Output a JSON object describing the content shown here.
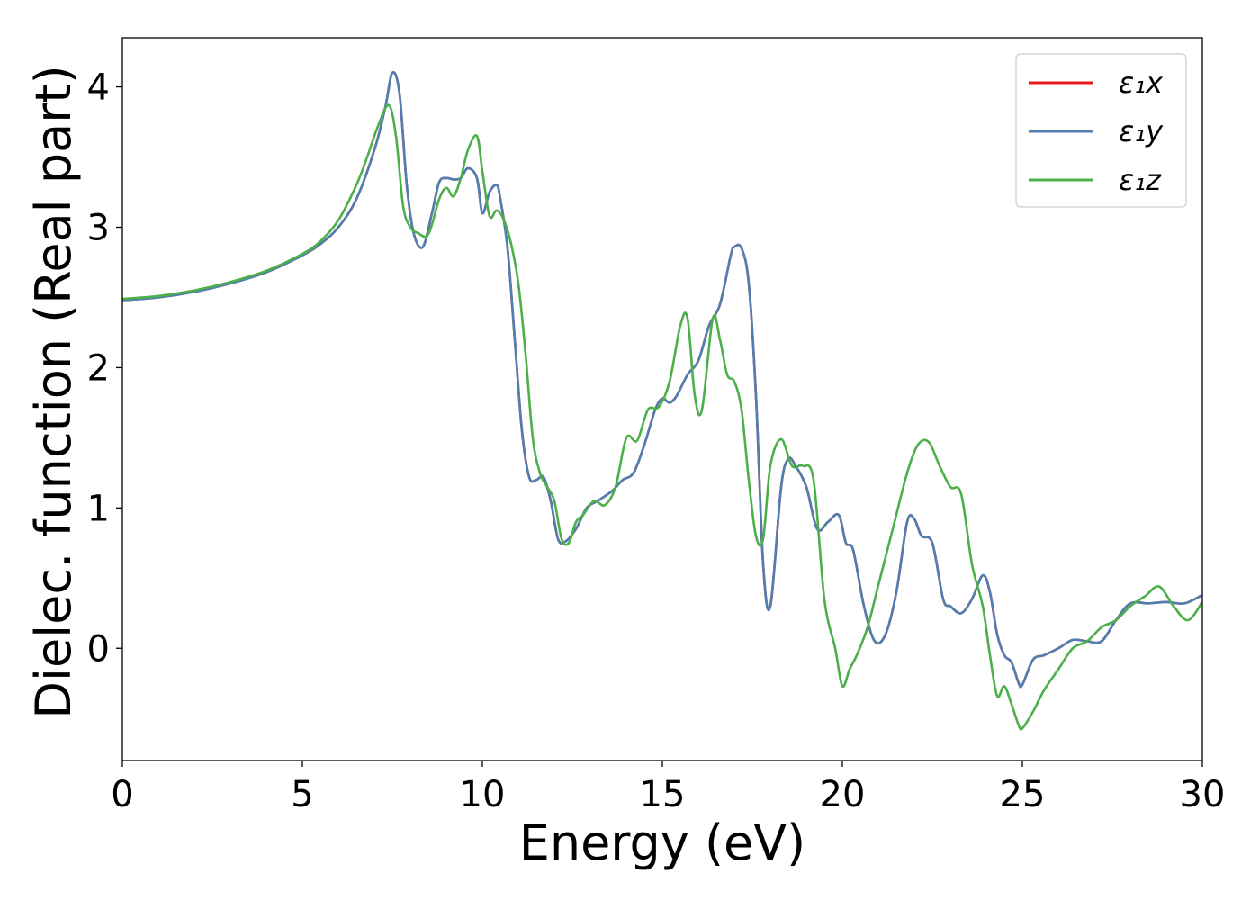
{
  "chart_data": {
    "type": "line",
    "title": "",
    "xlabel": "Energy (eV)",
    "ylabel": "Dielec. function (Real part)",
    "xlim": [
      0,
      30
    ],
    "ylim": [
      -0.8,
      4.35
    ],
    "xticks": [
      0,
      5,
      10,
      15,
      20,
      25,
      30
    ],
    "yticks": [
      0,
      1,
      2,
      3,
      4
    ],
    "grid": false,
    "legend_position": "top-right",
    "series": [
      {
        "name": "ε₁x",
        "color": "#e41a1c",
        "x": [
          0,
          1,
          2,
          3,
          4,
          5,
          5.5,
          6,
          6.5,
          7,
          7.3,
          7.5,
          7.7,
          7.9,
          8.1,
          8.35,
          8.6,
          8.8,
          9.0,
          9.2,
          9.4,
          9.6,
          9.85,
          10.0,
          10.2,
          10.4,
          10.5,
          10.7,
          10.9,
          11.1,
          11.3,
          11.5,
          11.7,
          11.9,
          12.1,
          12.3,
          12.6,
          12.9,
          13.2,
          13.6,
          13.9,
          14.2,
          14.5,
          14.8,
          15.0,
          15.2,
          15.4,
          15.7,
          16.0,
          16.3,
          16.6,
          16.9,
          17.0,
          17.2,
          17.4,
          17.6,
          17.8,
          18.0,
          18.3,
          18.5,
          18.7,
          19.0,
          19.3,
          19.6,
          19.9,
          20.1,
          20.3,
          20.6,
          20.9,
          21.2,
          21.5,
          21.8,
          22.0,
          22.2,
          22.5,
          22.8,
          23.0,
          23.3,
          23.6,
          23.9,
          24.1,
          24.3,
          24.5,
          24.7,
          24.9,
          25.0,
          25.3,
          25.6,
          26.0,
          26.4,
          26.8,
          27.2,
          27.6,
          28.0,
          28.5,
          29.0,
          29.5,
          30.0
        ],
        "y": [
          2.48,
          2.5,
          2.54,
          2.6,
          2.68,
          2.8,
          2.88,
          3.0,
          3.2,
          3.55,
          3.85,
          4.1,
          3.95,
          3.3,
          2.95,
          2.86,
          3.1,
          3.32,
          3.35,
          3.34,
          3.35,
          3.42,
          3.35,
          3.1,
          3.25,
          3.3,
          3.2,
          2.85,
          2.2,
          1.55,
          1.22,
          1.2,
          1.22,
          1.05,
          0.78,
          0.76,
          0.85,
          1.0,
          1.05,
          1.12,
          1.2,
          1.25,
          1.45,
          1.7,
          1.78,
          1.75,
          1.8,
          1.95,
          2.05,
          2.3,
          2.45,
          2.8,
          2.86,
          2.85,
          2.6,
          1.8,
          0.6,
          0.3,
          1.15,
          1.35,
          1.3,
          1.15,
          0.85,
          0.9,
          0.95,
          0.75,
          0.7,
          0.3,
          0.05,
          0.1,
          0.4,
          0.9,
          0.92,
          0.8,
          0.75,
          0.35,
          0.3,
          0.25,
          0.35,
          0.52,
          0.4,
          0.1,
          -0.05,
          -0.1,
          -0.25,
          -0.26,
          -0.08,
          -0.05,
          0.0,
          0.06,
          0.05,
          0.05,
          0.2,
          0.32,
          0.32,
          0.33,
          0.32,
          0.38
        ]
      },
      {
        "name": "ε₁y",
        "color": "#4e7fb0",
        "x": [
          0,
          1,
          2,
          3,
          4,
          5,
          5.5,
          6,
          6.5,
          7,
          7.3,
          7.5,
          7.7,
          7.9,
          8.1,
          8.35,
          8.6,
          8.8,
          9.0,
          9.2,
          9.4,
          9.6,
          9.85,
          10.0,
          10.2,
          10.4,
          10.5,
          10.7,
          10.9,
          11.1,
          11.3,
          11.5,
          11.7,
          11.9,
          12.1,
          12.3,
          12.6,
          12.9,
          13.2,
          13.6,
          13.9,
          14.2,
          14.5,
          14.8,
          15.0,
          15.2,
          15.4,
          15.7,
          16.0,
          16.3,
          16.6,
          16.9,
          17.0,
          17.2,
          17.4,
          17.6,
          17.8,
          18.0,
          18.3,
          18.5,
          18.7,
          19.0,
          19.3,
          19.6,
          19.9,
          20.1,
          20.3,
          20.6,
          20.9,
          21.2,
          21.5,
          21.8,
          22.0,
          22.2,
          22.5,
          22.8,
          23.0,
          23.3,
          23.6,
          23.9,
          24.1,
          24.3,
          24.5,
          24.7,
          24.9,
          25.0,
          25.3,
          25.6,
          26.0,
          26.4,
          26.8,
          27.2,
          27.6,
          28.0,
          28.5,
          29.0,
          29.5,
          30.0
        ],
        "y": [
          2.48,
          2.5,
          2.54,
          2.6,
          2.68,
          2.8,
          2.88,
          3.0,
          3.2,
          3.55,
          3.85,
          4.1,
          3.95,
          3.3,
          2.95,
          2.86,
          3.1,
          3.32,
          3.35,
          3.34,
          3.35,
          3.42,
          3.35,
          3.1,
          3.25,
          3.3,
          3.2,
          2.85,
          2.2,
          1.55,
          1.22,
          1.2,
          1.22,
          1.05,
          0.78,
          0.76,
          0.85,
          1.0,
          1.05,
          1.12,
          1.2,
          1.25,
          1.45,
          1.7,
          1.78,
          1.75,
          1.8,
          1.95,
          2.05,
          2.3,
          2.45,
          2.8,
          2.86,
          2.85,
          2.6,
          1.8,
          0.6,
          0.3,
          1.15,
          1.35,
          1.3,
          1.15,
          0.85,
          0.9,
          0.95,
          0.75,
          0.7,
          0.3,
          0.05,
          0.1,
          0.4,
          0.9,
          0.92,
          0.8,
          0.75,
          0.35,
          0.3,
          0.25,
          0.35,
          0.52,
          0.4,
          0.1,
          -0.05,
          -0.1,
          -0.25,
          -0.26,
          -0.08,
          -0.05,
          0.0,
          0.06,
          0.05,
          0.05,
          0.2,
          0.32,
          0.32,
          0.33,
          0.32,
          0.38
        ]
      },
      {
        "name": "ε₁z",
        "color": "#4daf4a",
        "x": [
          0,
          1,
          2,
          3,
          4,
          5,
          5.5,
          6,
          6.5,
          6.8,
          7.1,
          7.4,
          7.6,
          7.8,
          8.0,
          8.2,
          8.5,
          8.8,
          9.0,
          9.2,
          9.4,
          9.6,
          9.85,
          10.0,
          10.2,
          10.4,
          10.6,
          10.8,
          11.0,
          11.2,
          11.4,
          11.6,
          11.8,
          12.0,
          12.2,
          12.4,
          12.6,
          12.8,
          13.1,
          13.4,
          13.7,
          14.0,
          14.3,
          14.6,
          14.9,
          15.2,
          15.5,
          15.7,
          15.9,
          16.1,
          16.4,
          16.6,
          16.8,
          17.0,
          17.2,
          17.4,
          17.6,
          17.8,
          18.0,
          18.3,
          18.6,
          18.9,
          19.2,
          19.5,
          19.8,
          20.0,
          20.2,
          20.4,
          20.7,
          21.0,
          21.4,
          21.8,
          22.1,
          22.4,
          22.7,
          23.0,
          23.3,
          23.6,
          23.9,
          24.1,
          24.3,
          24.5,
          24.7,
          24.9,
          25.0,
          25.3,
          25.6,
          26.0,
          26.4,
          26.8,
          27.2,
          27.6,
          28.0,
          28.4,
          28.8,
          29.2,
          29.6,
          30.0
        ],
        "y": [
          2.49,
          2.51,
          2.55,
          2.61,
          2.69,
          2.81,
          2.9,
          3.05,
          3.3,
          3.5,
          3.72,
          3.87,
          3.65,
          3.15,
          3.0,
          2.96,
          2.95,
          3.2,
          3.28,
          3.22,
          3.35,
          3.55,
          3.65,
          3.4,
          3.08,
          3.12,
          3.05,
          2.88,
          2.6,
          2.1,
          1.5,
          1.25,
          1.15,
          1.05,
          0.78,
          0.75,
          0.9,
          0.95,
          1.05,
          1.02,
          1.15,
          1.5,
          1.48,
          1.7,
          1.72,
          1.9,
          2.3,
          2.35,
          1.8,
          1.7,
          2.35,
          2.2,
          1.95,
          1.9,
          1.7,
          1.2,
          0.8,
          0.78,
          1.3,
          1.49,
          1.3,
          1.3,
          1.2,
          0.35,
          0.0,
          -0.27,
          -0.15,
          -0.05,
          0.15,
          0.45,
          0.85,
          1.25,
          1.45,
          1.47,
          1.3,
          1.15,
          1.1,
          0.6,
          0.3,
          -0.05,
          -0.34,
          -0.27,
          -0.4,
          -0.55,
          -0.57,
          -0.45,
          -0.3,
          -0.15,
          0.0,
          0.05,
          0.15,
          0.2,
          0.3,
          0.37,
          0.44,
          0.3,
          0.2,
          0.33
        ]
      }
    ]
  }
}
